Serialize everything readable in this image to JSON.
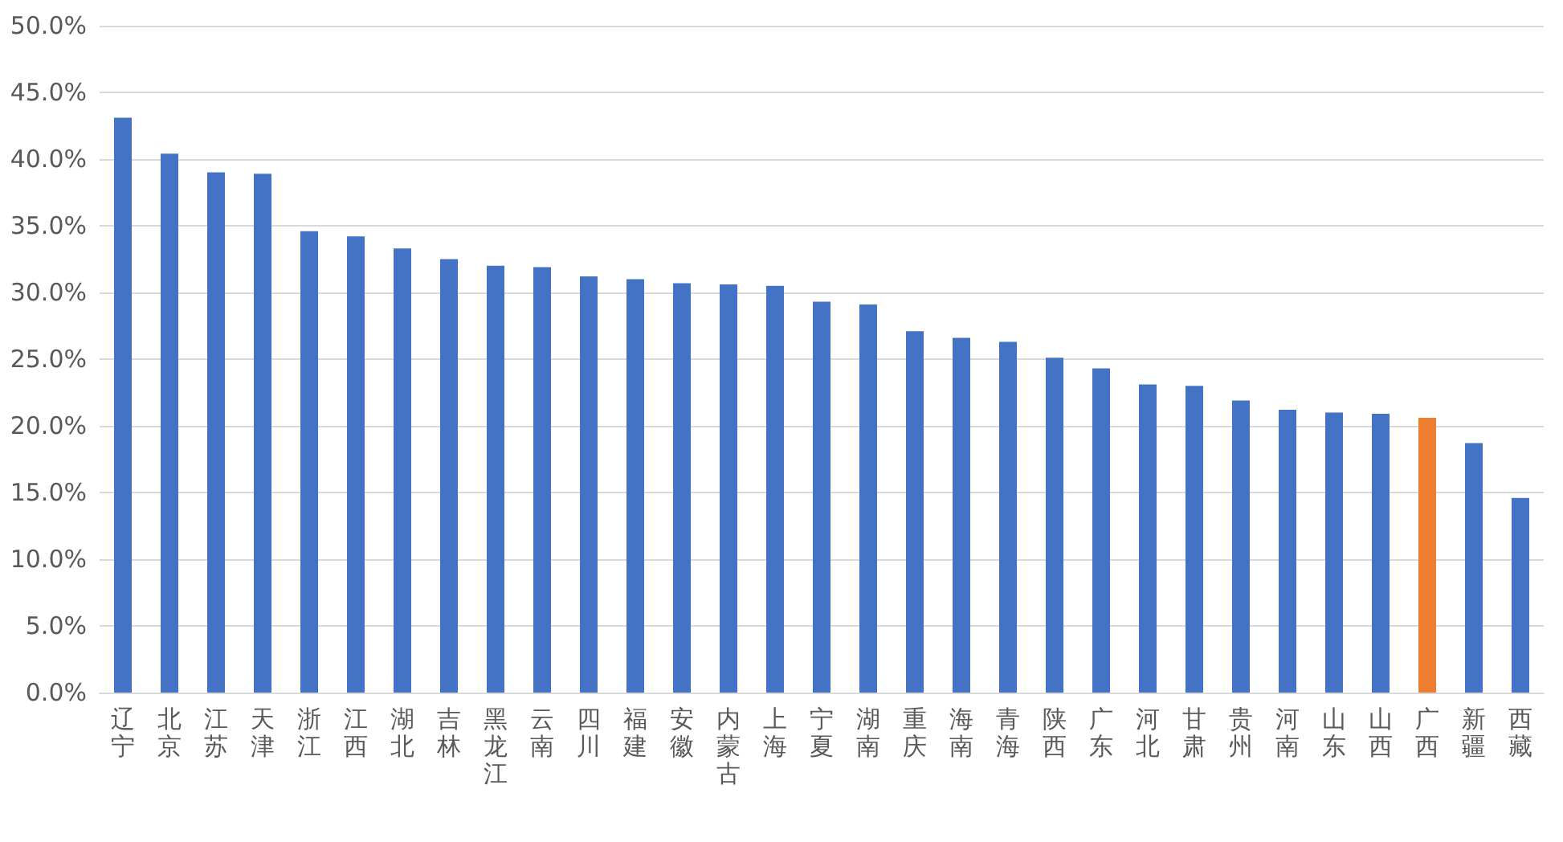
{
  "chart_data": {
    "type": "bar",
    "categories": [
      "辽宁",
      "北京",
      "江苏",
      "天津",
      "浙江",
      "江西",
      "湖北",
      "吉林",
      "黑龙江",
      "云南",
      "四川",
      "福建",
      "安徽",
      "内蒙古",
      "上海",
      "宁夏",
      "湖南",
      "重庆",
      "海南",
      "青海",
      "陕西",
      "广东",
      "河北",
      "甘肃",
      "贵州",
      "河南",
      "山东",
      "山西",
      "广西",
      "新疆",
      "西藏"
    ],
    "values": [
      43.1,
      40.4,
      39.0,
      38.9,
      34.6,
      34.2,
      33.3,
      32.5,
      32.0,
      31.9,
      31.2,
      31.0,
      30.7,
      30.6,
      30.5,
      29.3,
      29.1,
      27.1,
      26.6,
      26.3,
      25.1,
      24.3,
      23.1,
      23.0,
      21.9,
      21.2,
      21.0,
      20.9,
      20.6,
      18.7,
      14.6
    ],
    "colors": [
      "#4472c4",
      "#4472c4",
      "#4472c4",
      "#4472c4",
      "#4472c4",
      "#4472c4",
      "#4472c4",
      "#4472c4",
      "#4472c4",
      "#4472c4",
      "#4472c4",
      "#4472c4",
      "#4472c4",
      "#4472c4",
      "#4472c4",
      "#4472c4",
      "#4472c4",
      "#4472c4",
      "#4472c4",
      "#4472c4",
      "#4472c4",
      "#4472c4",
      "#4472c4",
      "#4472c4",
      "#4472c4",
      "#4472c4",
      "#4472c4",
      "#4472c4",
      "#ed7d31",
      "#4472c4",
      "#4472c4"
    ],
    "ylim": [
      0,
      50
    ],
    "yticks": [
      {
        "value": 0,
        "label": "0.0%"
      },
      {
        "value": 5,
        "label": "5.0%"
      },
      {
        "value": 10,
        "label": "10.0%"
      },
      {
        "value": 15,
        "label": "15.0%"
      },
      {
        "value": 20,
        "label": "20.0%"
      },
      {
        "value": 25,
        "label": "25.0%"
      },
      {
        "value": 30,
        "label": "30.0%"
      },
      {
        "value": 35,
        "label": "35.0%"
      },
      {
        "value": 40,
        "label": "40.0%"
      },
      {
        "value": 45,
        "label": "45.0%"
      },
      {
        "value": 50,
        "label": "50.0%"
      }
    ],
    "grid": "y"
  }
}
